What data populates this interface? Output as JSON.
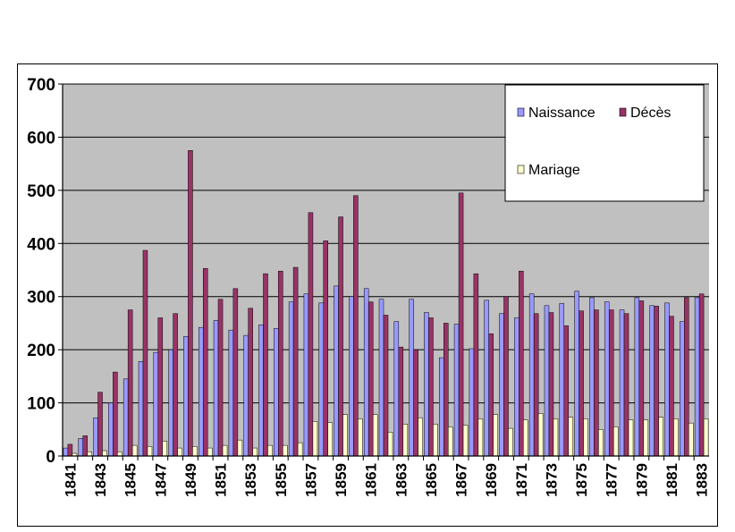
{
  "chart_data": {
    "type": "bar",
    "title": "",
    "xlabel": "",
    "ylabel": "",
    "ylim": [
      0,
      700
    ],
    "yticks": [
      0,
      100,
      200,
      300,
      400,
      500,
      600,
      700
    ],
    "grid": true,
    "legend_position": "top-right",
    "plot_background": "#c0c0c0",
    "categories": [
      1841,
      1842,
      1843,
      1844,
      1845,
      1846,
      1847,
      1848,
      1849,
      1850,
      1851,
      1852,
      1853,
      1854,
      1855,
      1856,
      1857,
      1858,
      1859,
      1860,
      1861,
      1862,
      1863,
      1864,
      1865,
      1866,
      1867,
      1868,
      1869,
      1870,
      1871,
      1872,
      1873,
      1874,
      1875,
      1876,
      1877,
      1878,
      1879,
      1880,
      1881,
      1882,
      1883
    ],
    "tick_labels": [
      "1841",
      "1843",
      "1845",
      "1847",
      "1849",
      "1851",
      "1853",
      "1855",
      "1857",
      "1859",
      "1861",
      "1863",
      "1865",
      "1867",
      "1869",
      "1871",
      "1873",
      "1875",
      "1877",
      "1879",
      "1881",
      "1883"
    ],
    "series": [
      {
        "name": "Naissance",
        "color": "#9999ff",
        "values": [
          15,
          33,
          72,
          100,
          145,
          178,
          195,
          200,
          225,
          242,
          255,
          237,
          227,
          247,
          240,
          290,
          305,
          288,
          320,
          300,
          315,
          295,
          253,
          295,
          270,
          185,
          248,
          202,
          293,
          268,
          260,
          305,
          283,
          287,
          310,
          298,
          290,
          275,
          298,
          283,
          288,
          253,
          298
        ]
      },
      {
        "name": "Décès",
        "color": "#993366",
        "values": [
          22,
          38,
          120,
          158,
          275,
          387,
          260,
          268,
          575,
          353,
          295,
          315,
          278,
          343,
          348,
          355,
          458,
          405,
          450,
          490,
          290,
          265,
          205,
          200,
          260,
          250,
          495,
          343,
          230,
          300,
          348,
          268,
          270,
          245,
          273,
          275,
          275,
          268,
          292,
          282,
          263,
          298,
          305
        ]
      },
      {
        "name": "Mariage",
        "color": "#ffffcc",
        "values": [
          5,
          8,
          10,
          8,
          20,
          18,
          28,
          15,
          18,
          15,
          20,
          30,
          15,
          20,
          20,
          25,
          65,
          63,
          78,
          70,
          78,
          45,
          60,
          72,
          60,
          55,
          58,
          70,
          78,
          52,
          68,
          80,
          70,
          73,
          70,
          50,
          55,
          68,
          68,
          73,
          70,
          62,
          70
        ]
      }
    ]
  }
}
